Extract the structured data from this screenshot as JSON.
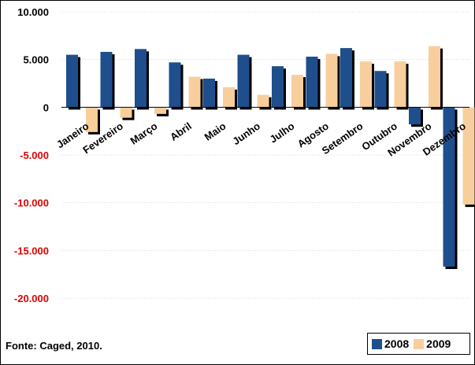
{
  "chart_data": {
    "type": "bar",
    "categories": [
      "Janeiro",
      "Fevereiro",
      "Março",
      "Abril",
      "Maio",
      "Junho",
      "Julho",
      "Agosto",
      "Setembro",
      "Outubro",
      "Novembro",
      "Dezembro"
    ],
    "series": [
      {
        "name": "2008",
        "color": "#1f4e8c",
        "values": [
          5500,
          5800,
          6100,
          4700,
          3000,
          5500,
          4300,
          5300,
          6200,
          3800,
          -1800,
          -16700
        ]
      },
      {
        "name": "2009",
        "color": "#f8cf9c",
        "values": [
          -2600,
          -1100,
          -700,
          3200,
          2100,
          1300,
          3400,
          5600,
          4800,
          4800,
          6400,
          -10200
        ]
      }
    ],
    "ylim": [
      -20000,
      10000
    ],
    "yticks": [
      {
        "value": 10000,
        "label": "10.000"
      },
      {
        "value": 5000,
        "label": "5.000"
      },
      {
        "value": 0,
        "label": "0"
      },
      {
        "value": -5000,
        "label": "-5.000"
      },
      {
        "value": -10000,
        "label": "-10.000"
      },
      {
        "value": -15000,
        "label": "-15.000"
      },
      {
        "value": -20000,
        "label": "-20.000"
      }
    ],
    "positive_tick_color": "#000000",
    "negative_tick_color": "#e00000",
    "shadow_color": "#000000",
    "grid": true,
    "legend_position": "bottom-right"
  },
  "source_note": "Fonte: Caged, 2010."
}
